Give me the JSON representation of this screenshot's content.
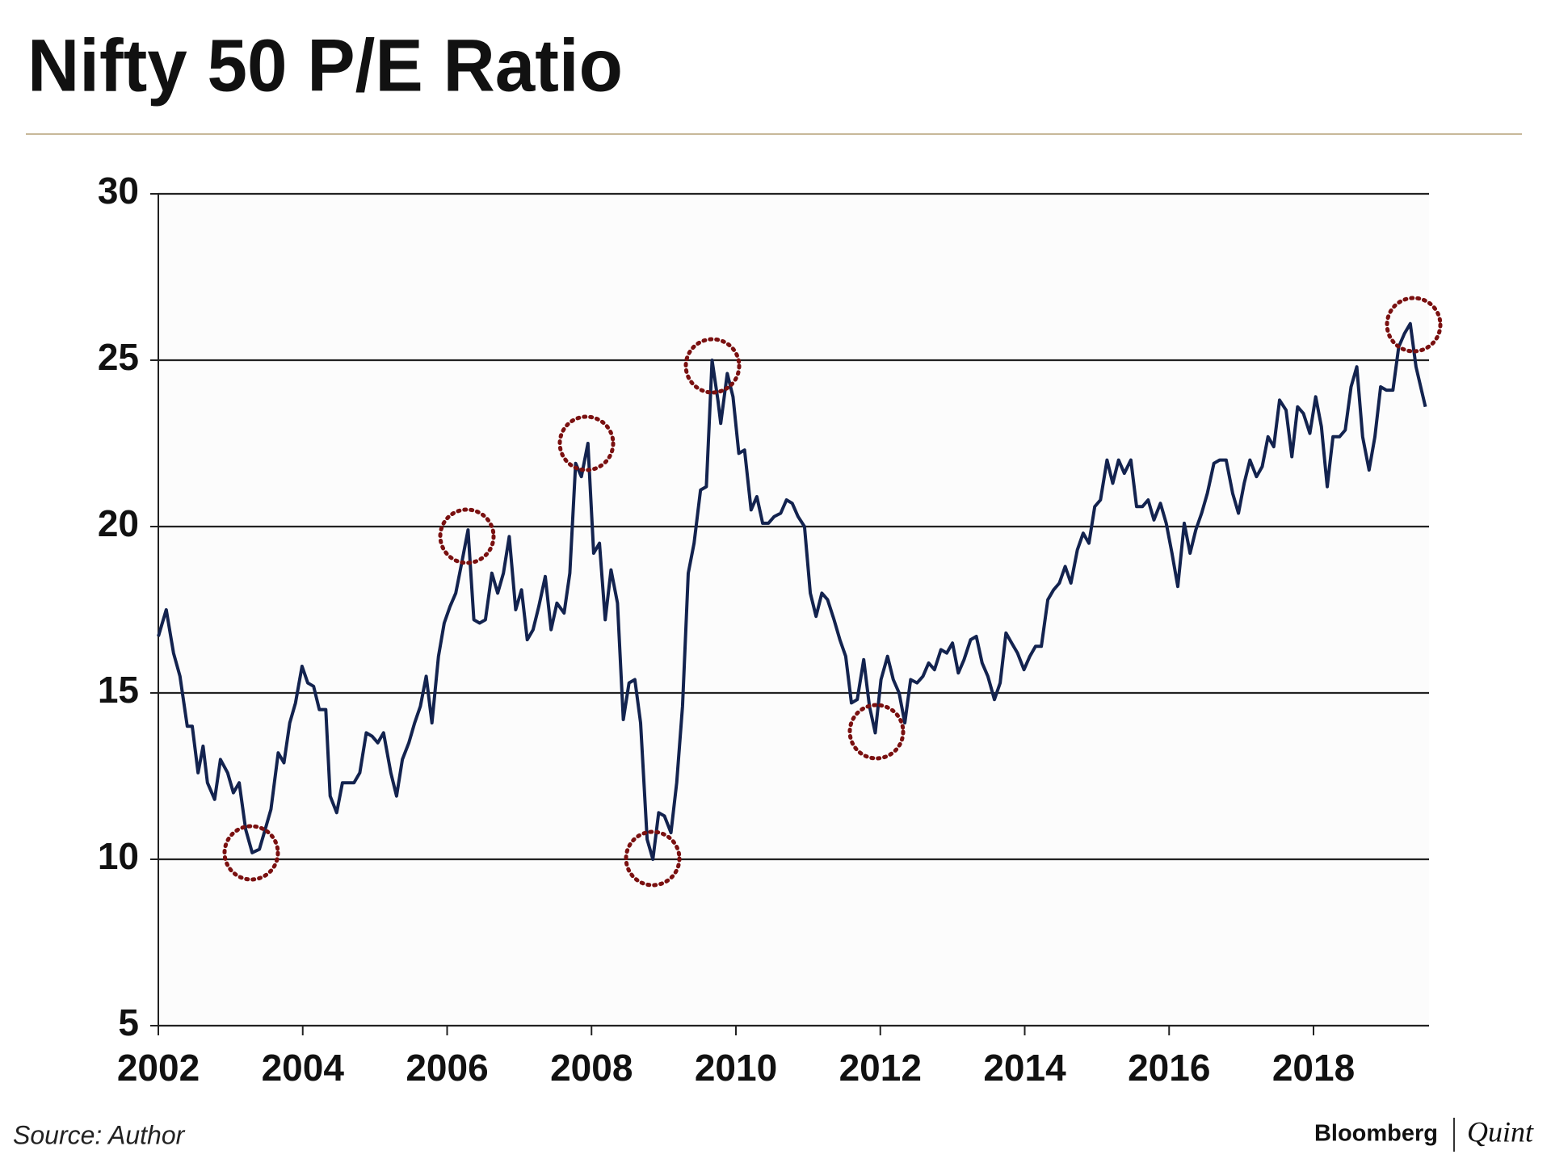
{
  "chart_data": {
    "type": "line",
    "title": "Nifty 50 P/E Ratio",
    "source": "Source: Author",
    "branding": {
      "left": "Bloomberg",
      "right": "Quint"
    },
    "color": "#13234f",
    "grid": true,
    "xlim": [
      2002,
      2019.6
    ],
    "xticks": [
      2002,
      2004,
      2006,
      2008,
      2010,
      2012,
      2014,
      2016,
      2018
    ],
    "ylim": [
      5,
      30
    ],
    "yticks": [
      5,
      10,
      15,
      20,
      25,
      30
    ],
    "x": [
      2002.0,
      2002.11,
      2002.21,
      2002.3,
      2002.4,
      2002.47,
      2002.55,
      2002.62,
      2002.68,
      2002.78,
      2002.86,
      2002.96,
      2003.04,
      2003.12,
      2003.21,
      2003.3,
      2003.4,
      2003.48,
      2003.56,
      2003.66,
      2003.74,
      2003.82,
      2003.9,
      2003.99,
      2004.07,
      2004.15,
      2004.23,
      2004.32,
      2004.38,
      2004.47,
      2004.55,
      2004.63,
      2004.71,
      2004.79,
      2004.88,
      2004.96,
      2005.04,
      2005.12,
      2005.22,
      2005.3,
      2005.38,
      2005.47,
      2005.55,
      2005.63,
      2005.71,
      2005.79,
      2005.88,
      2005.96,
      2006.04,
      2006.12,
      2006.21,
      2006.29,
      2006.37,
      2006.45,
      2006.53,
      2006.62,
      2006.7,
      2006.78,
      2006.86,
      2006.95,
      2007.03,
      2007.11,
      2007.19,
      2007.27,
      2007.36,
      2007.44,
      2007.52,
      2007.62,
      2007.7,
      2007.78,
      2007.86,
      2007.95,
      2008.03,
      2008.11,
      2008.19,
      2008.27,
      2008.36,
      2008.44,
      2008.52,
      2008.6,
      2008.68,
      2008.77,
      2008.85,
      2008.93,
      2009.01,
      2009.1,
      2009.18,
      2009.26,
      2009.34,
      2009.42,
      2009.51,
      2009.59,
      2009.67,
      2009.75,
      2009.79,
      2009.88,
      2009.96,
      2010.04,
      2010.12,
      2010.21,
      2010.29,
      2010.37,
      2010.45,
      2010.53,
      2010.62,
      2010.7,
      2010.78,
      2010.86,
      2010.95,
      2011.03,
      2011.11,
      2011.19,
      2011.27,
      2011.36,
      2011.44,
      2011.52,
      2011.6,
      2011.68,
      2011.77,
      2011.85,
      2011.93,
      2012.01,
      2012.1,
      2012.18,
      2012.26,
      2012.34,
      2012.42,
      2012.51,
      2012.59,
      2012.67,
      2012.75,
      2012.84,
      2012.92,
      2013.0,
      2013.08,
      2013.16,
      2013.25,
      2013.33,
      2013.41,
      2013.49,
      2013.58,
      2013.66,
      2013.74,
      2013.82,
      2013.9,
      2013.99,
      2014.07,
      2014.15,
      2014.23,
      2014.32,
      2014.4,
      2014.48,
      2014.56,
      2014.64,
      2014.73,
      2014.81,
      2014.89,
      2014.97,
      2015.05,
      2015.14,
      2015.22,
      2015.3,
      2015.38,
      2015.47,
      2015.55,
      2015.63,
      2015.71,
      2015.79,
      2015.88,
      2015.96,
      2016.04,
      2016.12,
      2016.21,
      2016.29,
      2016.37,
      2016.45,
      2016.53,
      2016.62,
      2016.7,
      2016.79,
      2016.88,
      2016.96,
      2017.04,
      2017.12,
      2017.21,
      2017.29,
      2017.37,
      2017.45,
      2017.53,
      2017.62,
      2017.7,
      2017.78,
      2017.86,
      2017.95,
      2018.03,
      2018.11,
      2018.19,
      2018.27,
      2018.36,
      2018.44,
      2018.52,
      2018.6,
      2018.68,
      2018.77,
      2018.85,
      2018.93,
      2019.01,
      2019.1,
      2019.18,
      2019.26,
      2019.34,
      2019.42,
      2019.55
    ],
    "values": [
      16.7,
      17.5,
      16.2,
      15.5,
      14.0,
      14.0,
      12.6,
      13.4,
      12.3,
      11.8,
      13.0,
      12.6,
      12.0,
      12.3,
      10.9,
      10.2,
      10.3,
      10.9,
      11.5,
      13.2,
      12.9,
      14.1,
      14.7,
      15.8,
      15.3,
      15.2,
      14.5,
      14.5,
      11.9,
      11.4,
      12.3,
      12.3,
      12.3,
      12.6,
      13.8,
      13.7,
      13.5,
      13.8,
      12.6,
      11.9,
      13.0,
      13.5,
      14.1,
      14.6,
      15.5,
      14.1,
      16.1,
      17.1,
      17.6,
      18.0,
      19.0,
      19.9,
      17.2,
      17.1,
      17.2,
      18.6,
      18.0,
      18.6,
      19.7,
      17.5,
      18.1,
      16.6,
      16.9,
      17.6,
      18.5,
      16.9,
      17.7,
      17.4,
      18.6,
      21.9,
      21.5,
      22.5,
      19.2,
      19.5,
      17.2,
      18.7,
      17.7,
      14.2,
      15.3,
      15.4,
      14.1,
      10.6,
      10.0,
      11.4,
      11.3,
      10.8,
      12.3,
      14.6,
      18.6,
      19.5,
      21.1,
      21.2,
      25.0,
      23.8,
      23.1,
      24.6,
      23.9,
      22.2,
      22.3,
      20.5,
      20.9,
      20.1,
      20.1,
      20.3,
      20.4,
      20.8,
      20.7,
      20.3,
      20.0,
      18.0,
      17.3,
      18.0,
      17.8,
      17.2,
      16.6,
      16.1,
      14.7,
      14.8,
      16.0,
      14.6,
      13.8,
      15.4,
      16.1,
      15.4,
      15.0,
      14.1,
      15.4,
      15.3,
      15.5,
      15.9,
      15.7,
      16.3,
      16.2,
      16.5,
      15.6,
      16.0,
      16.6,
      16.7,
      15.9,
      15.5,
      14.8,
      15.3,
      16.8,
      16.5,
      16.2,
      15.7,
      16.1,
      16.4,
      16.4,
      17.8,
      18.1,
      18.3,
      18.8,
      18.3,
      19.3,
      19.8,
      19.5,
      20.6,
      20.8,
      22.0,
      21.3,
      22.0,
      21.6,
      22.0,
      20.6,
      20.6,
      20.8,
      20.2,
      20.7,
      20.1,
      19.2,
      18.2,
      20.1,
      19.2,
      19.9,
      20.4,
      21.0,
      21.9,
      22.0,
      22.0,
      21.0,
      20.4,
      21.3,
      22.0,
      21.5,
      21.8,
      22.7,
      22.4,
      23.8,
      23.5,
      22.1,
      23.6,
      23.4,
      22.8,
      23.9,
      23.0,
      21.2,
      22.7,
      22.7,
      22.9,
      24.2,
      24.8,
      22.7,
      21.7,
      22.7,
      24.2,
      24.1,
      24.1,
      25.4,
      25.8,
      26.1,
      24.8,
      23.6
    ]
  }
}
